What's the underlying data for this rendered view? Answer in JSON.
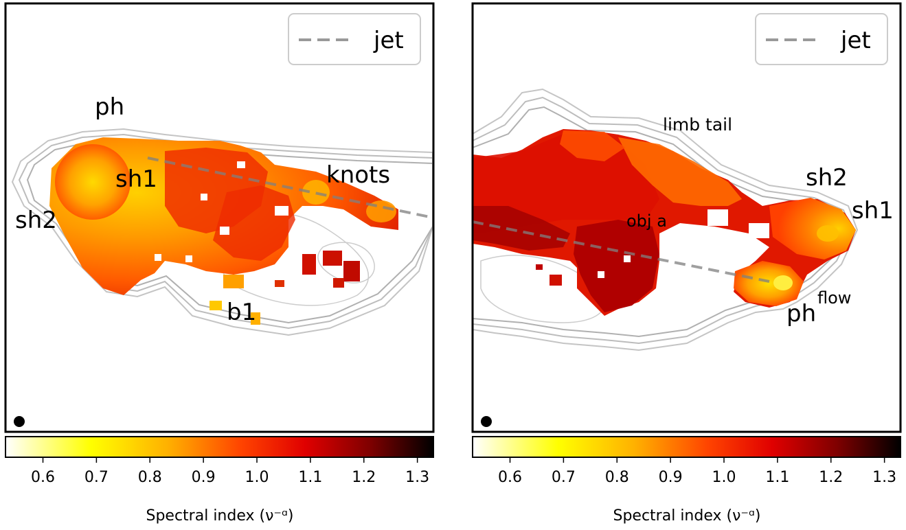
{
  "panels": [
    {
      "name": "left",
      "legend": {
        "label": "jet",
        "line_color": "#999999",
        "line_style": "dashed"
      },
      "annotations": [
        "ph",
        "sh1",
        "sh2",
        "knots",
        "b1"
      ],
      "beam_marker": "black-dot"
    },
    {
      "name": "right",
      "legend": {
        "label": "jet",
        "line_color": "#999999",
        "line_style": "dashed"
      },
      "annotations": [
        "limb tail",
        "sh2",
        "sh1",
        "obj a",
        "ph",
        "flow"
      ],
      "beam_marker": "black-dot"
    }
  ],
  "colorbar": {
    "label": "Spectral index (ν⁻ᵅ)",
    "colormap": "hot_r",
    "range": [
      0.53,
      1.33
    ],
    "ticks": [
      "0.6",
      "0.7",
      "0.8",
      "0.9",
      "1.0",
      "1.1",
      "1.2",
      "1.3"
    ],
    "tick_values": [
      0.6,
      0.7,
      0.8,
      0.9,
      1.0,
      1.1,
      1.2,
      1.3
    ]
  },
  "chart_data": [
    {
      "type": "heatmap",
      "title": "",
      "xlabel": "",
      "ylabel": "",
      "series": [
        {
          "name": "jet",
          "kind": "dashed-line"
        }
      ],
      "value_label": "Spectral index (ν⁻ᵅ)",
      "value_range": [
        0.53,
        1.33
      ],
      "annotations": [
        "ph",
        "sh1",
        "sh2",
        "knots",
        "b1"
      ]
    },
    {
      "type": "heatmap",
      "title": "",
      "xlabel": "",
      "ylabel": "",
      "series": [
        {
          "name": "jet",
          "kind": "dashed-line"
        }
      ],
      "value_label": "Spectral index (ν⁻ᵅ)",
      "value_range": [
        0.53,
        1.33
      ],
      "annotations": [
        "limb tail",
        "sh2",
        "sh1",
        "obj a",
        "ph",
        "flow"
      ]
    }
  ]
}
